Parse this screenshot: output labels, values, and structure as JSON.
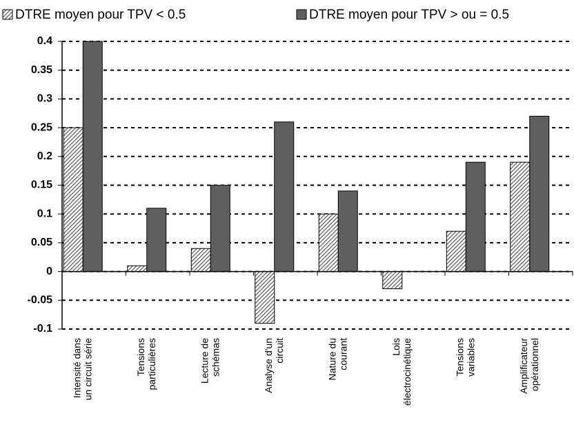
{
  "chart_data": {
    "type": "bar",
    "categories": [
      "Intensité dans\nun circuit série",
      "Tensions\nparticulières",
      "Lecture de\nschémas",
      "Analyse d'un\ncircuit",
      "Nature du\ncourant",
      "Lois\nélectrocinétique",
      "Tensions\nvariables",
      "Amplificateur\nopérationnel"
    ],
    "series": [
      {
        "name": "DTRE moyen pour TPV < 0.5",
        "color": "#555555",
        "hatched": true,
        "values": [
          0.25,
          0.01,
          0.04,
          -0.09,
          0.1,
          -0.03,
          0.07,
          0.19
        ]
      },
      {
        "name": "DTRE moyen pour TPV > ou = 0.5",
        "color": "#5f5f5f",
        "values": [
          0.4,
          0.11,
          0.15,
          0.26,
          0.14,
          0,
          0.19,
          0.27
        ]
      }
    ],
    "ylim": [
      -0.1,
      0.4
    ],
    "yticks": [
      -0.1,
      -0.05,
      0,
      0.05,
      0.1,
      0.15,
      0.2,
      0.25,
      0.3,
      0.35,
      0.4
    ],
    "grid": true,
    "legend": "top"
  }
}
